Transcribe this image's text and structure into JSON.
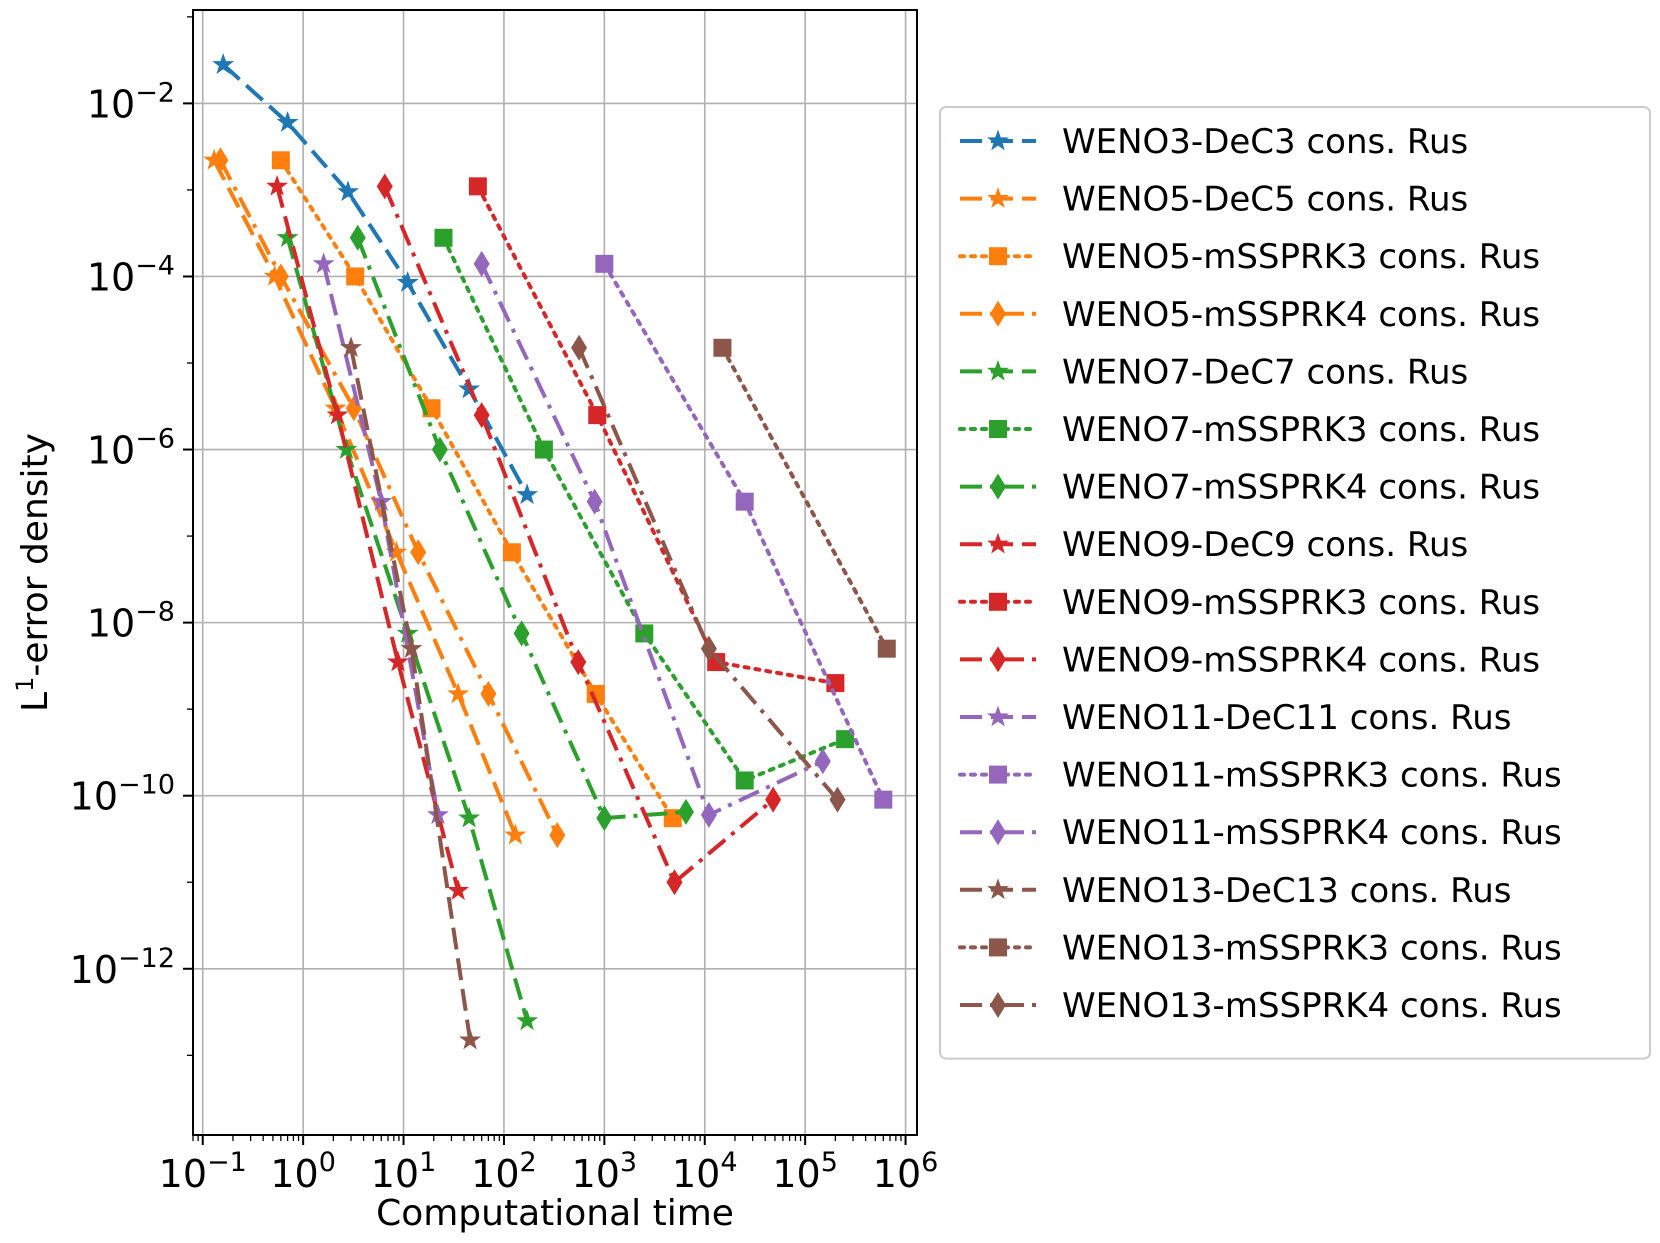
{
  "chart_data": {
    "type": "line",
    "xscale": "log",
    "yscale": "log",
    "xlabel": "Computational time",
    "ylabel": "L¹-error density",
    "ylabel_parts": {
      "base": "L",
      "sup": "1",
      "rest": "-error density"
    },
    "xlim": [
      0.08,
      1300000
    ],
    "ylim": [
      1.2e-14,
      0.12
    ],
    "grid": true,
    "legend_position": "right, outside plot",
    "x_ticks": [
      {
        "value": 0.1,
        "base": "10",
        "exp": "−1"
      },
      {
        "value": 1,
        "base": "10",
        "exp": "0"
      },
      {
        "value": 10,
        "base": "10",
        "exp": "1"
      },
      {
        "value": 100,
        "base": "10",
        "exp": "2"
      },
      {
        "value": 1000,
        "base": "10",
        "exp": "3"
      },
      {
        "value": 10000,
        "base": "10",
        "exp": "4"
      },
      {
        "value": 100000,
        "base": "10",
        "exp": "5"
      },
      {
        "value": 1000000,
        "base": "10",
        "exp": "6"
      }
    ],
    "y_ticks": [
      {
        "value": 0.01,
        "base": "10",
        "exp": "−2"
      },
      {
        "value": 0.0001,
        "base": "10",
        "exp": "−4"
      },
      {
        "value": 1e-06,
        "base": "10",
        "exp": "−6"
      },
      {
        "value": 1e-08,
        "base": "10",
        "exp": "−8"
      },
      {
        "value": 1e-10,
        "base": "10",
        "exp": "−10"
      },
      {
        "value": 1e-12,
        "base": "10",
        "exp": "−12"
      }
    ],
    "series": [
      {
        "name": "WENO3-DeC3 cons. Rus",
        "color": "#1f77b4",
        "dash": "dashed",
        "marker": "star",
        "x": [
          0.16,
          0.7,
          2.8,
          11,
          45,
          170
        ],
        "y": [
          0.028,
          0.006,
          0.00095,
          8.5e-05,
          5e-06,
          3e-07
        ]
      },
      {
        "name": "WENO5-DeC5 cons. Rus",
        "color": "#ff7f0e",
        "dash": "dashed",
        "marker": "star",
        "x": [
          0.13,
          0.52,
          2.1,
          8.5,
          35,
          130
        ],
        "y": [
          0.0022,
          0.0001,
          3e-06,
          6.5e-08,
          1.5e-09,
          3.5e-11
        ]
      },
      {
        "name": "WENO5-mSSPRK3 cons. Rus",
        "color": "#ff7f0e",
        "dash": "dotted",
        "marker": "square",
        "x": [
          0.6,
          3.3,
          19,
          120,
          820,
          4800
        ],
        "y": [
          0.0022,
          0.0001,
          3e-06,
          6.5e-08,
          1.5e-09,
          5.5e-11
        ]
      },
      {
        "name": "WENO5-mSSPRK4 cons. Rus",
        "color": "#ff7f0e",
        "dash": "dashdot",
        "marker": "diamond",
        "x": [
          0.15,
          0.6,
          3.2,
          14,
          70,
          340
        ],
        "y": [
          0.0022,
          0.0001,
          3e-06,
          6.5e-08,
          1.5e-09,
          3.5e-11
        ]
      },
      {
        "name": "WENO7-DeC7 cons. Rus",
        "color": "#2ca02c",
        "dash": "dashed",
        "marker": "star",
        "x": [
          0.7,
          2.7,
          11,
          45,
          170
        ],
        "y": [
          0.00028,
          1e-06,
          7.5e-09,
          5.5e-11,
          2.5e-13
        ]
      },
      {
        "name": "WENO7-mSSPRK3 cons. Rus",
        "color": "#2ca02c",
        "dash": "dotted",
        "marker": "square",
        "x": [
          25,
          250,
          2500,
          25000,
          250000
        ],
        "y": [
          0.00028,
          1e-06,
          7.5e-09,
          1.5e-10,
          4.5e-10
        ]
      },
      {
        "name": "WENO7-mSSPRK4 cons. Rus",
        "color": "#2ca02c",
        "dash": "dashdot",
        "marker": "diamond",
        "x": [
          3.5,
          23,
          150,
          1000,
          6500
        ],
        "y": [
          0.00028,
          1e-06,
          7.5e-09,
          5.5e-11,
          6.5e-11
        ]
      },
      {
        "name": "WENO9-DeC9 cons. Rus",
        "color": "#d62728",
        "dash": "dashed",
        "marker": "star",
        "x": [
          0.55,
          2.2,
          8.8,
          35
        ],
        "y": [
          0.0011,
          2.5e-06,
          3.5e-09,
          8e-12
        ]
      },
      {
        "name": "WENO9-mSSPRK3 cons. Rus",
        "color": "#d62728",
        "dash": "dotted",
        "marker": "square",
        "x": [
          55,
          850,
          13000,
          200000
        ],
        "y": [
          0.0011,
          2.5e-06,
          3.5e-09,
          2e-09
        ]
      },
      {
        "name": "WENO9-mSSPRK4 cons. Rus",
        "color": "#d62728",
        "dash": "dashdot",
        "marker": "diamond",
        "x": [
          6.5,
          60,
          550,
          5000,
          48000
        ],
        "y": [
          0.0011,
          2.5e-06,
          3.5e-09,
          1e-11,
          9e-11
        ]
      },
      {
        "name": "WENO11-DeC11 cons. Rus",
        "color": "#9467bd",
        "dash": "dashed",
        "marker": "star",
        "x": [
          1.6,
          6,
          22
        ],
        "y": [
          0.00014,
          2.5e-07,
          6e-11
        ]
      },
      {
        "name": "WENO11-mSSPRK3 cons. Rus",
        "color": "#9467bd",
        "dash": "dotted",
        "marker": "square",
        "x": [
          1000,
          25000,
          600000
        ],
        "y": [
          0.00014,
          2.5e-07,
          9e-11
        ]
      },
      {
        "name": "WENO11-mSSPRK4 cons. Rus",
        "color": "#9467bd",
        "dash": "dashdot",
        "marker": "diamond",
        "x": [
          60,
          800,
          11000,
          150000
        ],
        "y": [
          0.00014,
          2.5e-07,
          6e-11,
          2.5e-10
        ]
      },
      {
        "name": "WENO13-DeC13 cons. Rus",
        "color": "#8c564b",
        "dash": "dashed",
        "marker": "star",
        "x": [
          3,
          12,
          46
        ],
        "y": [
          1.5e-05,
          5e-09,
          1.5e-13
        ]
      },
      {
        "name": "WENO13-mSSPRK3 cons. Rus",
        "color": "#8c564b",
        "dash": "dotted",
        "marker": "square",
        "x": [
          15000,
          650000
        ],
        "y": [
          1.5e-05,
          5e-09
        ]
      },
      {
        "name": "WENO13-mSSPRK4 cons. Rus",
        "color": "#8c564b",
        "dash": "dashdot",
        "marker": "diamond",
        "x": [
          560,
          11000,
          210000
        ],
        "y": [
          1.5e-05,
          5e-09,
          9e-11
        ]
      }
    ]
  }
}
